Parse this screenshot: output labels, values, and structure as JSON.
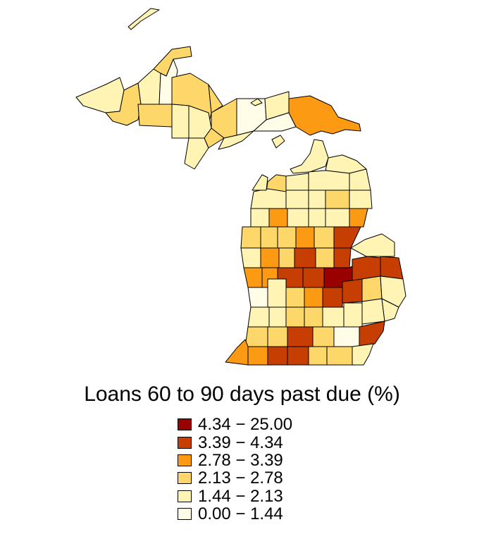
{
  "legend": {
    "title": "Loans 60 to 90 days past due (%)",
    "classes": [
      {
        "label": "4.34 − 25.00",
        "color": "#990000"
      },
      {
        "label": "3.39 − 4.34",
        "color": "#C63E02"
      },
      {
        "label": "2.78 − 3.39",
        "color": "#FC9A13"
      },
      {
        "label": "2.13 − 2.78",
        "color": "#FED76B"
      },
      {
        "label": "1.44 − 2.13",
        "color": "#FFF4B3"
      },
      {
        "label": "0.00 − 1.44",
        "color": "#FFFCE8"
      }
    ]
  },
  "map": {
    "region": "Michigan",
    "unit": "county",
    "border_color": "#000000"
  }
}
